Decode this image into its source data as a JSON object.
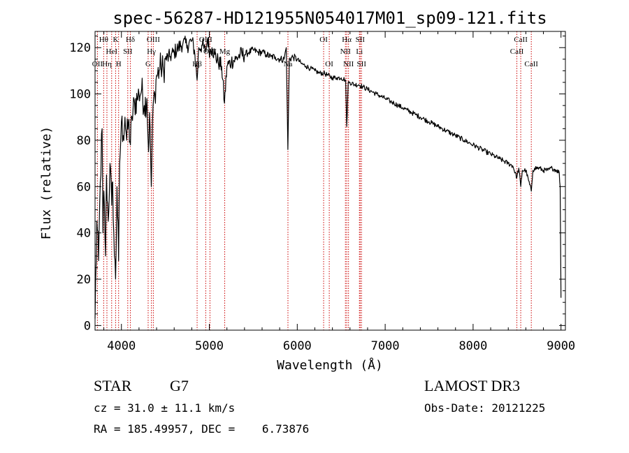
{
  "chart_data": {
    "type": "line",
    "title": "spec-56287-HD121955N054017M01_sp09-121.fits",
    "xlabel": "Wavelength (Å)",
    "ylabel": "Flux (relative)",
    "xlim": [
      3700,
      9050
    ],
    "ylim": [
      -2,
      127
    ],
    "xticks": [
      4000,
      5000,
      6000,
      7000,
      8000,
      9000
    ],
    "yticks": [
      0,
      20,
      40,
      60,
      80,
      100,
      120
    ],
    "xtick_labels": [
      "4000",
      "5000",
      "6000",
      "7000",
      "8000",
      "9000"
    ],
    "ytick_labels": [
      "0",
      "20",
      "40",
      "60",
      "80",
      "100",
      "120"
    ],
    "grid": false,
    "line_color": "#000000",
    "marker_color": "#cc0000",
    "series": [
      {
        "name": "flux",
        "anchors": [
          [
            3700,
            3
          ],
          [
            3720,
            45
          ],
          [
            3740,
            28
          ],
          [
            3760,
            62
          ],
          [
            3780,
            85
          ],
          [
            3790,
            40
          ],
          [
            3800,
            58
          ],
          [
            3820,
            30
          ],
          [
            3830,
            65
          ],
          [
            3850,
            45
          ],
          [
            3870,
            70
          ],
          [
            3889,
            52
          ],
          [
            3900,
            62
          ],
          [
            3920,
            30
          ],
          [
            3934,
            20
          ],
          [
            3950,
            60
          ],
          [
            3968,
            28
          ],
          [
            3980,
            70
          ],
          [
            4000,
            88
          ],
          [
            4020,
            82
          ],
          [
            4040,
            90
          ],
          [
            4060,
            80
          ],
          [
            4080,
            88
          ],
          [
            4102,
            78
          ],
          [
            4120,
            90
          ],
          [
            4150,
            96
          ],
          [
            4180,
            98
          ],
          [
            4200,
            100
          ],
          [
            4230,
            102
          ],
          [
            4260,
            95
          ],
          [
            4290,
            98
          ],
          [
            4308,
            75
          ],
          [
            4320,
            92
          ],
          [
            4340,
            60
          ],
          [
            4360,
            95
          ],
          [
            4380,
            100
          ],
          [
            4400,
            108
          ],
          [
            4430,
            110
          ],
          [
            4450,
            112
          ],
          [
            4480,
            110
          ],
          [
            4500,
            115
          ],
          [
            4550,
            116
          ],
          [
            4600,
            118
          ],
          [
            4650,
            120
          ],
          [
            4700,
            122
          ],
          [
            4750,
            121
          ],
          [
            4800,
            123
          ],
          [
            4830,
            119
          ],
          [
            4861,
            106
          ],
          [
            4880,
            120
          ],
          [
            4920,
            121
          ],
          [
            4957,
            118
          ],
          [
            4980,
            124
          ],
          [
            5007,
            118
          ],
          [
            5030,
            120
          ],
          [
            5060,
            117
          ],
          [
            5100,
            114
          ],
          [
            5140,
            112
          ],
          [
            5172,
            96
          ],
          [
            5200,
            112
          ],
          [
            5250,
            114
          ],
          [
            5300,
            115
          ],
          [
            5350,
            117
          ],
          [
            5400,
            117
          ],
          [
            5450,
            118
          ],
          [
            5500,
            119
          ],
          [
            5550,
            118
          ],
          [
            5600,
            118
          ],
          [
            5650,
            117
          ],
          [
            5700,
            116
          ],
          [
            5750,
            116
          ],
          [
            5800,
            115
          ],
          [
            5850,
            115
          ],
          [
            5875,
            120
          ],
          [
            5893,
            76
          ],
          [
            5910,
            115
          ],
          [
            5950,
            116
          ],
          [
            6000,
            115
          ],
          [
            6050,
            113
          ],
          [
            6100,
            112
          ],
          [
            6150,
            111
          ],
          [
            6200,
            110
          ],
          [
            6250,
            109
          ],
          [
            6300,
            109
          ],
          [
            6350,
            108
          ],
          [
            6400,
            107
          ],
          [
            6450,
            107
          ],
          [
            6500,
            107
          ],
          [
            6550,
            106
          ],
          [
            6563,
            86
          ],
          [
            6580,
            105
          ],
          [
            6600,
            105
          ],
          [
            6650,
            104
          ],
          [
            6700,
            104
          ],
          [
            6750,
            103
          ],
          [
            6800,
            102
          ],
          [
            6850,
            101
          ],
          [
            6900,
            100
          ],
          [
            6950,
            99
          ],
          [
            7000,
            98
          ],
          [
            7050,
            97
          ],
          [
            7100,
            96
          ],
          [
            7150,
            95
          ],
          [
            7200,
            94
          ],
          [
            7250,
            93
          ],
          [
            7300,
            92
          ],
          [
            7350,
            91
          ],
          [
            7400,
            90
          ],
          [
            7450,
            89
          ],
          [
            7500,
            88
          ],
          [
            7550,
            87
          ],
          [
            7600,
            86
          ],
          [
            7650,
            85
          ],
          [
            7700,
            84
          ],
          [
            7750,
            83
          ],
          [
            7800,
            82
          ],
          [
            7850,
            81
          ],
          [
            7900,
            80
          ],
          [
            7950,
            79
          ],
          [
            8000,
            78
          ],
          [
            8050,
            77
          ],
          [
            8100,
            76
          ],
          [
            8150,
            75
          ],
          [
            8200,
            74
          ],
          [
            8250,
            73
          ],
          [
            8300,
            72
          ],
          [
            8350,
            71
          ],
          [
            8400,
            70
          ],
          [
            8450,
            69
          ],
          [
            8498,
            64
          ],
          [
            8520,
            68
          ],
          [
            8542,
            60
          ],
          [
            8560,
            67
          ],
          [
            8600,
            67
          ],
          [
            8662,
            58
          ],
          [
            8680,
            67
          ],
          [
            8700,
            68
          ],
          [
            8750,
            68
          ],
          [
            8800,
            67
          ],
          [
            8850,
            67
          ],
          [
            8900,
            68
          ],
          [
            8950,
            67
          ],
          [
            8980,
            66
          ],
          [
            8990,
            60
          ],
          [
            9000,
            12
          ]
        ]
      }
    ],
    "line_markers": [
      {
        "wl": 3727,
        "label": "OII",
        "row": 2
      },
      {
        "wl": 3798,
        "label": "Hθ",
        "row": 0
      },
      {
        "wl": 3835,
        "label": "Hη",
        "row": 2
      },
      {
        "wl": 3889,
        "label": "HeI",
        "row": 1
      },
      {
        "wl": 3934,
        "label": "K",
        "row": 0
      },
      {
        "wl": 3968,
        "label": "H",
        "row": 2
      },
      {
        "wl": 4072,
        "label": "SII",
        "row": 1
      },
      {
        "wl": 4102,
        "label": "Hδ",
        "row": 0
      },
      {
        "wl": 4304,
        "label": "G",
        "row": 2
      },
      {
        "wl": 4341,
        "label": "Hγ",
        "row": 1
      },
      {
        "wl": 4363,
        "label": "OIII",
        "row": 0
      },
      {
        "wl": 4861,
        "label": "Hβ",
        "row": 2
      },
      {
        "wl": 4959,
        "label": "OIII",
        "row": 0
      },
      {
        "wl": 5007,
        "label": "OIII",
        "row": 1
      },
      {
        "wl": 5175,
        "label": "Mg",
        "row": 1
      },
      {
        "wl": 5894,
        "label": "Na",
        "row": 2
      },
      {
        "wl": 6300,
        "label": "OI",
        "row": 0
      },
      {
        "wl": 6364,
        "label": "OI",
        "row": 2
      },
      {
        "wl": 6548,
        "label": "NII",
        "row": 1
      },
      {
        "wl": 6563,
        "label": "Hα",
        "row": 0
      },
      {
        "wl": 6583,
        "label": "NII",
        "row": 2
      },
      {
        "wl": 6707,
        "label": "Li",
        "row": 1
      },
      {
        "wl": 6716,
        "label": "SII",
        "row": 0
      },
      {
        "wl": 6731,
        "label": "SII",
        "row": 2
      },
      {
        "wl": 8498,
        "label": "CaII",
        "row": 1
      },
      {
        "wl": 8542,
        "label": "CaII",
        "row": 0
      },
      {
        "wl": 8662,
        "label": "CaII",
        "row": 2
      }
    ]
  },
  "info": {
    "object_class": "STAR",
    "subclass": "G7",
    "survey": "LAMOST DR3",
    "redshift": "cz = 31.0 ± 11.1 km/s",
    "obs_date": "Obs-Date: 20121225",
    "coords": "RA = 185.49957, DEC =    6.73876"
  }
}
